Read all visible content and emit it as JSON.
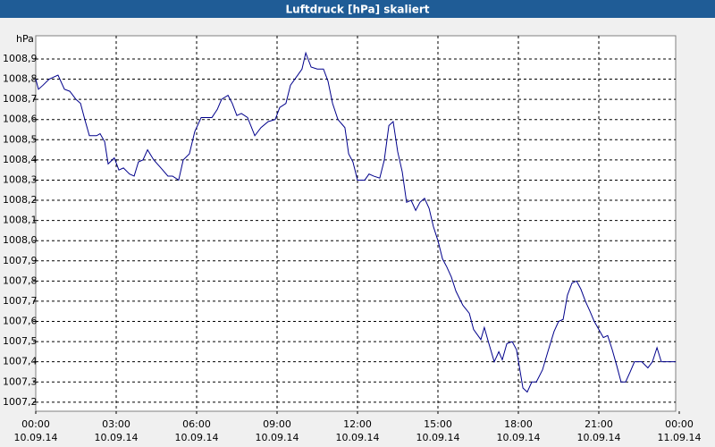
{
  "chart_data": {
    "type": "line",
    "title": "Luftdruck [hPa] skaliert",
    "y_label": "hPa",
    "grid": true,
    "xlim": [
      0,
      24
    ],
    "xticks": [
      {
        "value": 0,
        "label": "00:00",
        "date": "10.09.14"
      },
      {
        "value": 3,
        "label": "03:00",
        "date": "10.09.14"
      },
      {
        "value": 6,
        "label": "06:00",
        "date": "10.09.14"
      },
      {
        "value": 9,
        "label": "09:00",
        "date": "10.09.14"
      },
      {
        "value": 12,
        "label": "12:00",
        "date": "10.09.14"
      },
      {
        "value": 15,
        "label": "15:00",
        "date": "10.09.14"
      },
      {
        "value": 18,
        "label": "18:00",
        "date": "10.09.14"
      },
      {
        "value": 21,
        "label": "21:00",
        "date": "10.09.14"
      },
      {
        "value": 24,
        "label": "00:00",
        "date": "11.09.14"
      }
    ],
    "ylim": [
      1007.155,
      1009.015
    ],
    "yticks": [
      {
        "value": 1007.2,
        "label": "1007,2"
      },
      {
        "value": 1007.3,
        "label": "1007,3"
      },
      {
        "value": 1007.4,
        "label": "1007,4"
      },
      {
        "value": 1007.5,
        "label": "1007,5"
      },
      {
        "value": 1007.6,
        "label": "1007,6"
      },
      {
        "value": 1007.7,
        "label": "1007,7"
      },
      {
        "value": 1007.8,
        "label": "1007,8"
      },
      {
        "value": 1007.9,
        "label": "1007,9"
      },
      {
        "value": 1008.0,
        "label": "1008,0"
      },
      {
        "value": 1008.1,
        "label": "1008,1"
      },
      {
        "value": 1008.2,
        "label": "1008,2"
      },
      {
        "value": 1008.3,
        "label": "1008,3"
      },
      {
        "value": 1008.4,
        "label": "1008,4"
      },
      {
        "value": 1008.5,
        "label": "1008,5"
      },
      {
        "value": 1008.6,
        "label": "1008,6"
      },
      {
        "value": 1008.7,
        "label": "1008,7"
      },
      {
        "value": 1008.8,
        "label": "1008,8"
      },
      {
        "value": 1008.9,
        "label": "1008,9"
      }
    ],
    "x": [
      0,
      0.1,
      0.27,
      0.5,
      0.83,
      1.07,
      1.27,
      1.5,
      1.67,
      1.83,
      2,
      2.27,
      2.4,
      2.57,
      2.7,
      2.93,
      3.1,
      3.27,
      3.5,
      3.67,
      3.83,
      4,
      4.17,
      4.4,
      4.67,
      4.93,
      5.1,
      5.33,
      5.5,
      5.73,
      5.93,
      6.17,
      6.33,
      6.57,
      6.77,
      6.93,
      7.17,
      7.33,
      7.5,
      7.67,
      7.9,
      8.17,
      8.4,
      8.67,
      8.93,
      9.1,
      9.33,
      9.5,
      9.77,
      9.93,
      10.07,
      10.27,
      10.5,
      10.73,
      10.9,
      11.07,
      11.27,
      11.53,
      11.67,
      11.83,
      12,
      12.27,
      12.43,
      12.6,
      12.83,
      13,
      13.17,
      13.33,
      13.5,
      13.67,
      13.83,
      14,
      14.17,
      14.33,
      14.5,
      14.67,
      14.83,
      15,
      15.17,
      15.33,
      15.5,
      15.67,
      15.93,
      16.17,
      16.33,
      16.6,
      16.73,
      16.9,
      17.1,
      17.27,
      17.4,
      17.57,
      17.77,
      17.93,
      18.17,
      18.33,
      18.5,
      18.67,
      18.9,
      19.1,
      19.33,
      19.5,
      19.67,
      19.83,
      20,
      20.17,
      20.33,
      20.5,
      20.67,
      20.83,
      21,
      21.17,
      21.33,
      21.5,
      21.67,
      21.83,
      22,
      22.17,
      22.33,
      22.6,
      22.83,
      23,
      23.17,
      23.33,
      23.87
    ],
    "series": [
      {
        "name": "Luftdruck",
        "color": "#00008b",
        "values": [
          1008.8,
          1008.75,
          1008.77,
          1008.8,
          1008.82,
          1008.75,
          1008.74,
          1008.7,
          1008.68,
          1008.6,
          1008.52,
          1008.52,
          1008.53,
          1008.49,
          1008.38,
          1008.41,
          1008.35,
          1008.36,
          1008.33,
          1008.32,
          1008.39,
          1008.4,
          1008.45,
          1008.4,
          1008.36,
          1008.32,
          1008.32,
          1008.3,
          1008.4,
          1008.43,
          1008.54,
          1008.61,
          1008.61,
          1008.61,
          1008.65,
          1008.7,
          1008.72,
          1008.68,
          1008.62,
          1008.63,
          1008.61,
          1008.52,
          1008.56,
          1008.59,
          1008.6,
          1008.66,
          1008.68,
          1008.77,
          1008.82,
          1008.85,
          1008.93,
          1008.86,
          1008.85,
          1008.85,
          1008.79,
          1008.68,
          1008.6,
          1008.56,
          1008.43,
          1008.39,
          1008.3,
          1008.3,
          1008.33,
          1008.32,
          1008.31,
          1008.4,
          1008.57,
          1008.59,
          1008.44,
          1008.34,
          1008.19,
          1008.2,
          1008.15,
          1008.19,
          1008.21,
          1008.16,
          1008.07,
          1008.0,
          1007.91,
          1007.87,
          1007.82,
          1007.75,
          1007.68,
          1007.64,
          1007.56,
          1007.51,
          1007.57,
          1007.49,
          1007.4,
          1007.45,
          1007.41,
          1007.49,
          1007.5,
          1007.46,
          1007.27,
          1007.25,
          1007.3,
          1007.3,
          1007.36,
          1007.45,
          1007.55,
          1007.6,
          1007.61,
          1007.73,
          1007.79,
          1007.8,
          1007.76,
          1007.7,
          1007.65,
          1007.6,
          1007.56,
          1007.52,
          1007.53,
          1007.46,
          1007.38,
          1007.3,
          1007.3,
          1007.35,
          1007.4,
          1007.4,
          1007.37,
          1007.4,
          1007.47,
          1007.4,
          1007.4
        ]
      }
    ]
  }
}
